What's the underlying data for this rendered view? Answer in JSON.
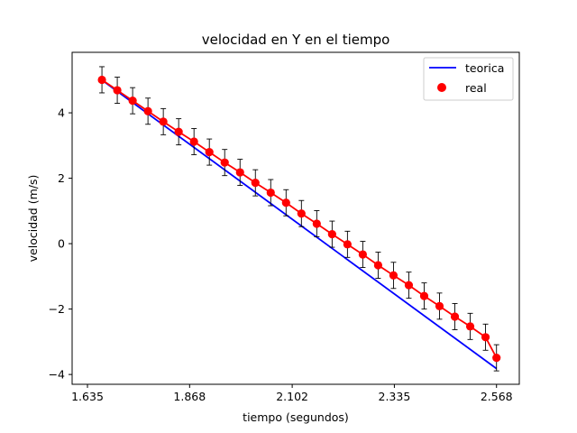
{
  "chart_data": {
    "type": "line",
    "title": "velocidad en Y en el tiempo",
    "xlabel": "tiempo (segundos)",
    "ylabel": "velocidad (m/s)",
    "xlim": [
      1.6,
      2.62
    ],
    "ylim": [
      -4.3,
      5.85
    ],
    "xticks": [
      1.635,
      1.868,
      2.102,
      2.335,
      2.568
    ],
    "xtick_labels": [
      "1.635",
      "1.868",
      "2.102",
      "2.335",
      "2.568"
    ],
    "yticks": [
      -4,
      -2,
      0,
      2,
      4
    ],
    "ytick_labels": [
      "−4",
      "−2",
      "0",
      "2",
      "4"
    ],
    "grid": false,
    "legend_position": "top-right",
    "series": [
      {
        "name": "teorica",
        "kind": "line",
        "color": "#0000ff",
        "x": [
          1.668,
          2.568
        ],
        "y": [
          5.0,
          -3.82
        ]
      },
      {
        "name": "real",
        "kind": "scatter",
        "color": "#ff0000",
        "connect_line": true,
        "error_bar": 0.4,
        "x": [
          1.668,
          1.703,
          1.738,
          1.773,
          1.808,
          1.843,
          1.878,
          1.913,
          1.948,
          1.983,
          2.018,
          2.053,
          2.088,
          2.123,
          2.158,
          2.193,
          2.228,
          2.263,
          2.298,
          2.333,
          2.368,
          2.403,
          2.438,
          2.473,
          2.508,
          2.543,
          2.568
        ],
        "y": [
          5.01,
          4.69,
          4.37,
          4.05,
          3.73,
          3.42,
          3.12,
          2.8,
          2.48,
          2.18,
          1.86,
          1.56,
          1.25,
          0.92,
          0.61,
          0.29,
          -0.02,
          -0.33,
          -0.66,
          -0.97,
          -1.27,
          -1.6,
          -1.91,
          -2.23,
          -2.53,
          -2.86,
          -3.49
        ]
      }
    ]
  }
}
